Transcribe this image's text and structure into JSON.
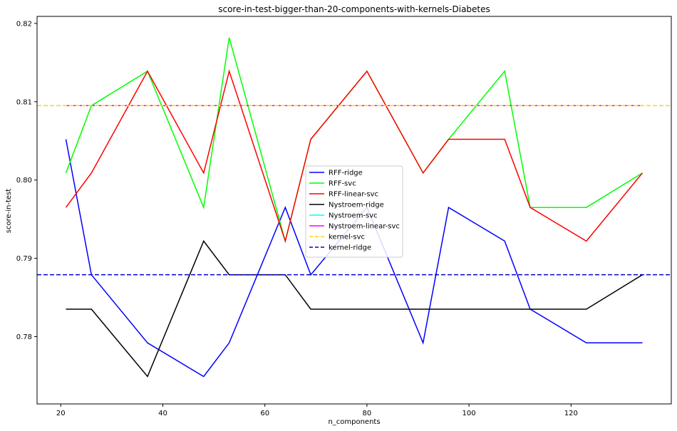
{
  "chart_data": {
    "type": "line",
    "title": "score-in-test-bigger-than-20-components-with-kernels-Diabetes",
    "xlabel": "n_components",
    "ylabel": "score-in-test",
    "xlim": [
      15.35,
      139.65
    ],
    "ylim": [
      0.7714,
      0.8209
    ],
    "xticks": [
      20,
      40,
      60,
      80,
      100,
      120
    ],
    "xtick_labels": [
      "20",
      "40",
      "60",
      "80",
      "100",
      "120"
    ],
    "yticks": [
      0.78,
      0.79,
      0.8,
      0.81,
      0.82
    ],
    "ytick_labels": [
      "0.78",
      "0.79",
      "0.80",
      "0.81",
      "0.82"
    ],
    "grid": false,
    "legend_position": "center",
    "x": [
      21,
      26,
      37,
      48,
      53,
      64,
      69,
      80,
      91,
      96,
      107,
      112,
      123,
      134
    ],
    "series": [
      {
        "name": "RFF-ridge",
        "color": "#0000ff",
        "style": "solid",
        "values": [
          0.8052,
          0.7879,
          0.7792,
          0.7749,
          0.7792,
          0.7965,
          0.7879,
          0.7965,
          0.7792,
          0.7965,
          0.7922,
          0.7835,
          0.7792,
          0.7792
        ]
      },
      {
        "name": "RFF-svc",
        "color": "#00ff00",
        "style": "solid",
        "values": [
          0.8009,
          0.8095,
          0.8139,
          0.7965,
          0.8182,
          0.7922,
          0.8052,
          0.8139,
          0.8009,
          0.8052,
          0.8139,
          0.7965,
          0.7965,
          0.8009
        ]
      },
      {
        "name": "RFF-linear-svc",
        "color": "#ff0000",
        "style": "solid",
        "values": [
          0.7965,
          0.8009,
          0.8139,
          0.8009,
          0.8139,
          0.7922,
          0.8052,
          0.8139,
          0.8009,
          0.8052,
          0.8052,
          0.7965,
          0.7922,
          0.8009
        ]
      },
      {
        "name": "Nystroem-ridge",
        "color": "#000000",
        "style": "solid",
        "values": [
          0.7835,
          0.7835,
          0.7749,
          0.7922,
          0.7879,
          0.7879,
          0.7835,
          0.7835,
          0.7835,
          0.7835,
          0.7835,
          0.7835,
          0.7835,
          0.7879
        ]
      },
      {
        "name": "Nystroem-svc",
        "color": "#00ffff",
        "style": "solid",
        "values": [
          0.8095,
          0.8095,
          0.8095,
          0.8095,
          0.8095,
          0.8095,
          0.8095,
          0.8095,
          0.8095,
          0.8095,
          0.8095,
          0.8095,
          0.8095,
          0.8095
        ]
      },
      {
        "name": "Nystroem-linear-svc",
        "color": "#ff00ff",
        "style": "solid",
        "values": [
          0.8095,
          0.8095,
          0.8095,
          0.8095,
          0.8095,
          0.8095,
          0.8095,
          0.8095,
          0.8095,
          0.8095,
          0.8095,
          0.8095,
          0.8095,
          0.8095
        ]
      },
      {
        "name": "kernel-svc",
        "color": "#ffd700",
        "style": "dashed",
        "hline": 0.8095
      },
      {
        "name": "kernel-ridge",
        "color": "#0000cd",
        "style": "dashed",
        "hline": 0.7879
      }
    ]
  }
}
